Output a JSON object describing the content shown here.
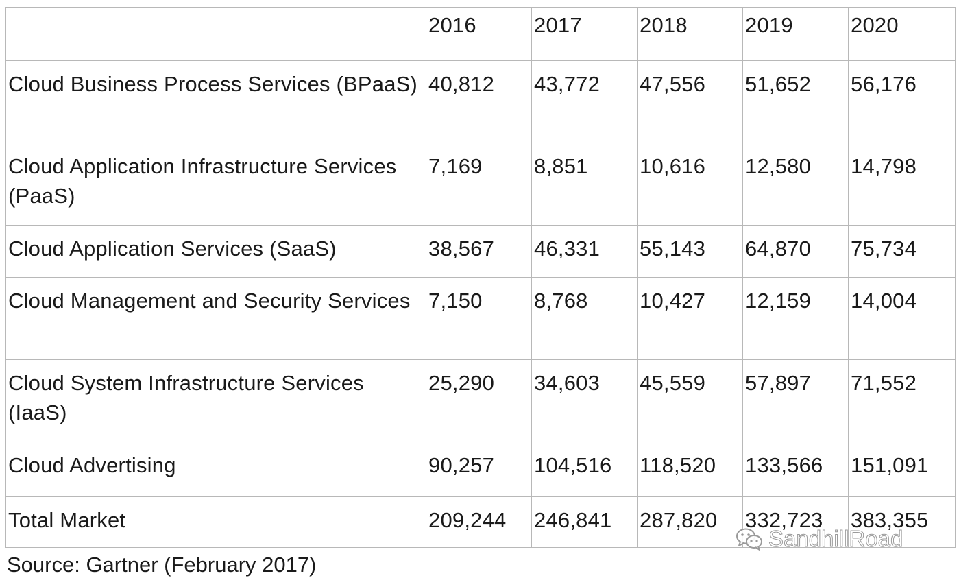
{
  "table": {
    "header": [
      "",
      "2016",
      "2017",
      "2018",
      "2019",
      "2020"
    ],
    "rows": [
      {
        "label": "Cloud Business Process Services (BPaaS)",
        "values": [
          "40,812",
          "43,772",
          "47,556",
          "51,652",
          "56,176"
        ]
      },
      {
        "label": "Cloud Application Infrastructure Services (PaaS)",
        "values": [
          "7,169",
          "8,851",
          "10,616",
          "12,580",
          "14,798"
        ]
      },
      {
        "label": "Cloud Application Services (SaaS)",
        "values": [
          "38,567",
          "46,331",
          "55,143",
          "64,870",
          "75,734"
        ]
      },
      {
        "label": "Cloud Management and Security Services",
        "values": [
          "7,150",
          "8,768",
          "10,427",
          "12,159",
          "14,004"
        ]
      },
      {
        "label": "Cloud System Infrastructure Services (IaaS)",
        "values": [
          "25,290",
          "34,603",
          "45,559",
          "57,897",
          "71,552"
        ]
      },
      {
        "label": "Cloud Advertising",
        "values": [
          "90,257",
          "104,516",
          "118,520",
          "133,566",
          "151,091"
        ]
      },
      {
        "label": "Total Market",
        "values": [
          "209,244",
          "246,841",
          "287,820",
          "332,723",
          "383,355"
        ]
      }
    ]
  },
  "source": "Source: Gartner (February 2017)",
  "watermark": {
    "text": "SandhillRoad",
    "icon": "wechat-icon"
  }
}
